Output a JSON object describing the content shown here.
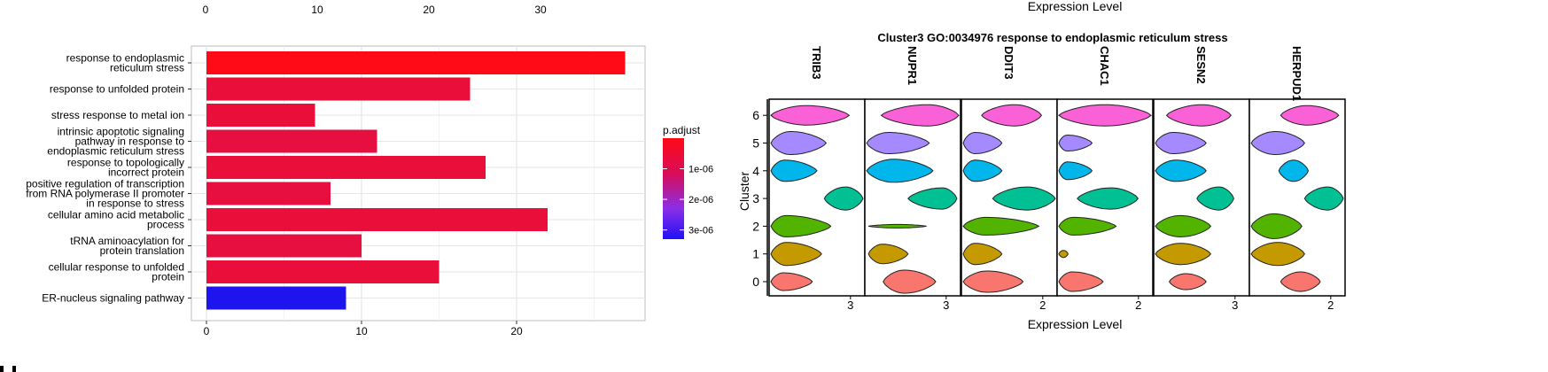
{
  "chart_data": [
    {
      "type": "bar",
      "orientation": "horizontal",
      "top_axis_ticks": [
        "0",
        "10",
        "20",
        "30"
      ],
      "top_axis_values": [
        0,
        10,
        20,
        30
      ],
      "categories": [
        [
          "response to endoplasmic",
          "reticulum stress"
        ],
        [
          "response to unfolded protein"
        ],
        [
          "stress response to metal ion"
        ],
        [
          "intrinsic apoptotic signaling",
          "pathway in response to",
          "endoplasmic reticulum stress"
        ],
        [
          "response to topologically",
          "incorrect protein"
        ],
        [
          "positive regulation of transcription",
          "from RNA polymerase II promoter",
          "in response to stress"
        ],
        [
          "cellular amino acid metabolic",
          "process"
        ],
        [
          "tRNA aminoacylation for",
          "protein translation"
        ],
        [
          "cellular response to unfolded",
          "protein"
        ],
        [
          "ER-nucleus signaling pathway"
        ]
      ],
      "values": [
        27,
        17,
        7,
        11,
        18,
        8,
        22,
        10,
        15,
        9
      ],
      "colors": [
        "#ff0a17",
        "#ea0f3a",
        "#ea0f3a",
        "#e60f40",
        "#ea0f3a",
        "#e60f40",
        "#ea0f3a",
        "#e60f40",
        "#ea0f3a",
        "#1d14ee"
      ],
      "xlim": [
        0,
        28
      ],
      "xticks": [
        0,
        10,
        20
      ],
      "grid": true,
      "legend": {
        "title": "p.adjust",
        "position": "right",
        "ticks": [
          {
            "label": "1e-06",
            "value": 1e-06
          },
          {
            "label": "2e-06",
            "value": 2e-06
          },
          {
            "label": "3e-06",
            "value": 3e-06
          }
        ],
        "range": [
          0,
          3.3e-06
        ],
        "colors": [
          "#ff0a17",
          "#d80c58",
          "#8a2ee8",
          "#1f12f6"
        ]
      }
    },
    {
      "type": "violin",
      "title": "Cluster3 GO:0034976 response to endoplasmic reticulum stress",
      "top_xlabel": "Expression Level",
      "xlabel": "Expression Level",
      "ylabel": "Cluster",
      "genes": [
        "TRIB3",
        "NUPR1",
        "DDIT3",
        "CHAC1",
        "SESN2",
        "HERPUD1"
      ],
      "gene_ticks": [
        "3",
        "3",
        "2",
        "2",
        "3",
        "2"
      ],
      "clusters": [
        "0",
        "1",
        "2",
        "3",
        "4",
        "5",
        "6"
      ],
      "cluster_colors": [
        "#f8766d",
        "#c49a00",
        "#53b400",
        "#00c094",
        "#00b6eb",
        "#a58aff",
        "#fb61d7"
      ]
    }
  ]
}
